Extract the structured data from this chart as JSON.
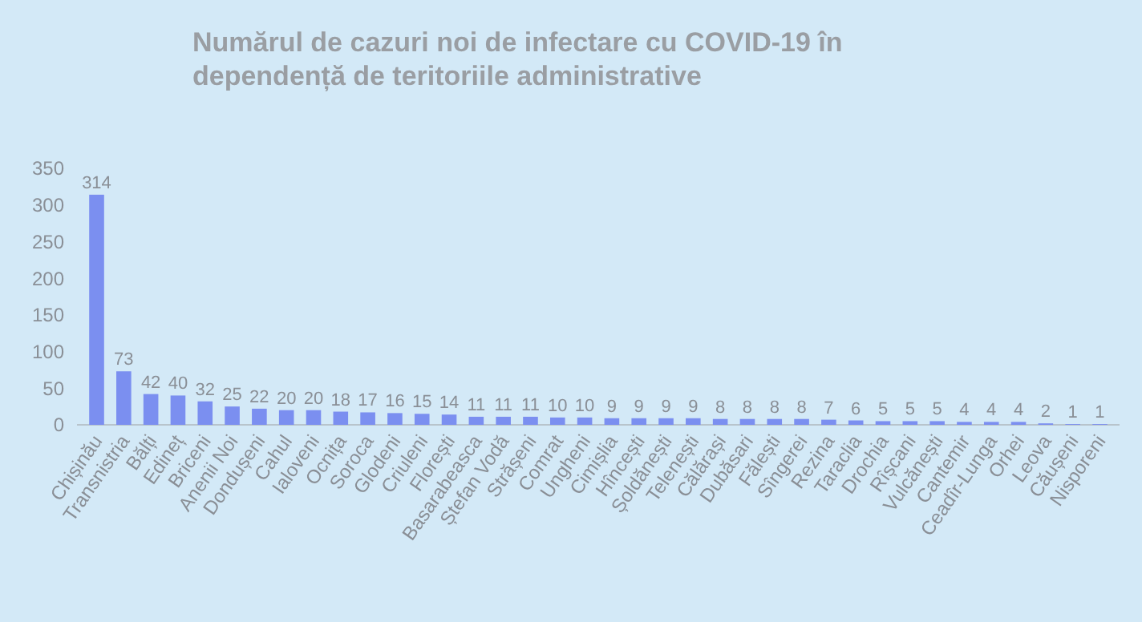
{
  "chart_data": {
    "type": "bar",
    "title": "Numărul de cazuri noi de infectare cu COVID-19 în dependență de teritoriile administrative",
    "categories": [
      "Chișinău",
      "Transnistria",
      "Bălți",
      "Edineț",
      "Briceni",
      "Anenii Noi",
      "Dondușeni",
      "Cahul",
      "Ialoveni",
      "Ocnița",
      "Soroca",
      "Glodeni",
      "Criuleni",
      "Florești",
      "Basarabeasca",
      "Ștefan Vodă",
      "Strășeni",
      "Comrat",
      "Ungheni",
      "Cimișlia",
      "Hîncești",
      "Șoldănești",
      "Telenești",
      "Călărași",
      "Dubăsari",
      "Fălești",
      "Sîngerei",
      "Rezina",
      "Taraclia",
      "Drochia",
      "Rîșcani",
      "Vulcănești",
      "Cantemir",
      "Ceadîr-Lunga",
      "Orhei",
      "Leova",
      "Căușeni",
      "Nisporeni"
    ],
    "values": [
      314,
      73,
      42,
      40,
      32,
      25,
      22,
      20,
      20,
      18,
      17,
      16,
      15,
      14,
      11,
      11,
      11,
      10,
      10,
      9,
      9,
      9,
      9,
      8,
      8,
      8,
      8,
      7,
      6,
      5,
      5,
      5,
      4,
      4,
      4,
      2,
      1,
      1
    ],
    "color": "#7b8ff0",
    "ylim": [
      0,
      350
    ],
    "yticks": [
      0,
      50,
      100,
      150,
      200,
      250,
      300,
      350
    ],
    "data_labels": true
  }
}
